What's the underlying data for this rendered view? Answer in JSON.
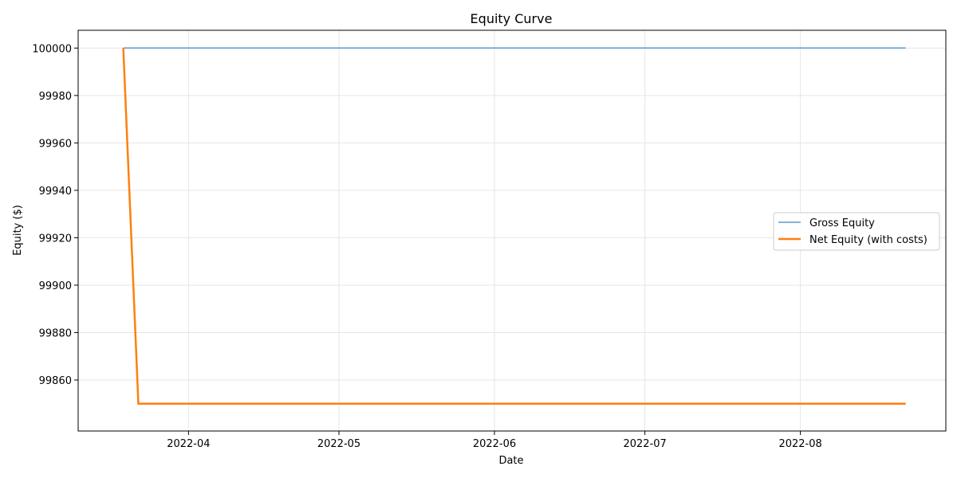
{
  "chart_data": {
    "type": "line",
    "title": "Equity Curve",
    "xlabel": "Date",
    "ylabel": "Equity ($)",
    "x_ticks": [
      "2022-04",
      "2022-05",
      "2022-06",
      "2022-07",
      "2022-08"
    ],
    "y_ticks": [
      99860,
      99880,
      99900,
      99920,
      99940,
      99960,
      99980,
      100000
    ],
    "xlim": [
      "2022-03-10",
      "2022-08-30"
    ],
    "ylim": [
      99838.5,
      100007.5
    ],
    "grid": true,
    "legend_position": "center-right",
    "series": [
      {
        "name": "Gross Equity",
        "color": "#5b9bc8",
        "points": [
          [
            "2022-03-19",
            100000
          ],
          [
            "2022-08-22",
            100000
          ]
        ]
      },
      {
        "name": "Net Equity (with costs)",
        "color": "#ff7f0e",
        "points": [
          [
            "2022-03-19",
            100000
          ],
          [
            "2022-03-22",
            99850
          ],
          [
            "2022-08-22",
            99850
          ]
        ]
      }
    ]
  }
}
